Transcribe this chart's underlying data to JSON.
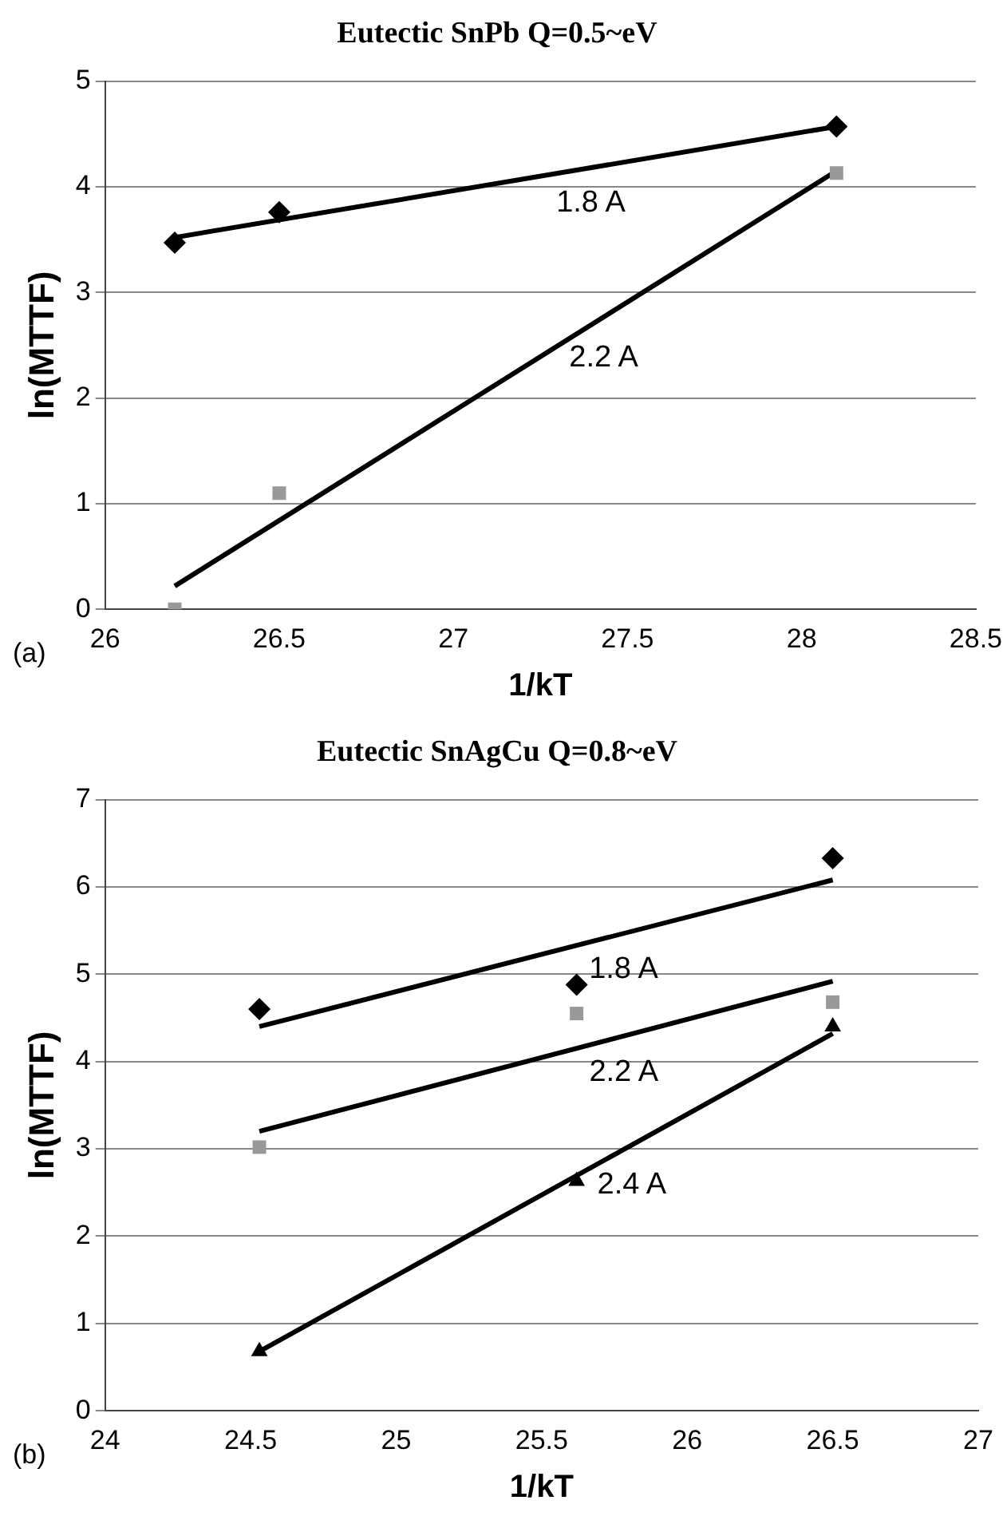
{
  "chart_data": [
    {
      "type": "scatter",
      "title": "Eutectic SnPb Q=0.5~eV",
      "xlabel": "1/kT",
      "ylabel": "ln(MTTF)",
      "xlim": [
        26,
        28.5
      ],
      "xticks": [
        26,
        26.5,
        27,
        27.5,
        28,
        28.5
      ],
      "ylim": [
        0,
        5
      ],
      "yticks": [
        0,
        1,
        2,
        3,
        4,
        5
      ],
      "grid": "y",
      "legend": false,
      "series": [
        {
          "marker": "diamond",
          "color": "#000000",
          "x": [
            26.2,
            26.5,
            28.1
          ],
          "values": [
            3.47,
            3.76,
            4.57
          ]
        },
        {
          "marker": "square",
          "color": "#999999",
          "x": [
            26.2,
            26.5,
            28.1
          ],
          "values": [
            0,
            1.1,
            4.13
          ]
        },
        {
          "type": "line",
          "name": "1.8 A",
          "marker": "none",
          "color": "#000000",
          "x": [
            26.2,
            28.1
          ],
          "values": [
            3.52,
            4.57
          ]
        },
        {
          "type": "line",
          "name": "2.2 A",
          "marker": "none",
          "color": "#000000",
          "x": [
            26.2,
            28.1
          ],
          "values": [
            0.22,
            4.15
          ]
        }
      ],
      "annotations": [
        "(a)"
      ]
    },
    {
      "type": "scatter",
      "title": "Eutectic SnAgCu Q=0.8~eV",
      "xlabel": "1/kT",
      "ylabel": "ln(MTTF)",
      "xlim": [
        24,
        27
      ],
      "xticks": [
        24,
        24.5,
        25,
        25.5,
        26,
        26.5,
        27
      ],
      "ylim": [
        0,
        7
      ],
      "yticks": [
        0,
        1,
        2,
        3,
        4,
        5,
        6,
        7
      ],
      "grid": "y",
      "legend": false,
      "series": [
        {
          "marker": "diamond",
          "color": "#000000",
          "x": [
            24.53,
            25.62,
            26.5
          ],
          "values": [
            4.6,
            4.88,
            6.33
          ]
        },
        {
          "marker": "square",
          "color": "#999999",
          "x": [
            24.53,
            25.62,
            26.5
          ],
          "values": [
            3.02,
            4.55,
            4.68
          ]
        },
        {
          "marker": "triangle",
          "color": "#000000",
          "x": [
            24.53,
            25.62,
            26.5
          ],
          "values": [
            0.68,
            2.63,
            4.4
          ]
        },
        {
          "type": "line",
          "name": "1.8 A",
          "marker": "none",
          "color": "#000000",
          "x": [
            24.53,
            26.5
          ],
          "values": [
            4.4,
            6.08
          ]
        },
        {
          "type": "line",
          "name": "2.2 A",
          "marker": "none",
          "color": "#000000",
          "x": [
            24.53,
            26.5
          ],
          "values": [
            3.2,
            4.92
          ]
        },
        {
          "type": "line",
          "name": "2.4 A",
          "marker": "none",
          "color": "#000000",
          "x": [
            24.53,
            26.5
          ],
          "values": [
            0.68,
            4.32
          ]
        }
      ],
      "annotations": [
        "(b)"
      ]
    }
  ]
}
